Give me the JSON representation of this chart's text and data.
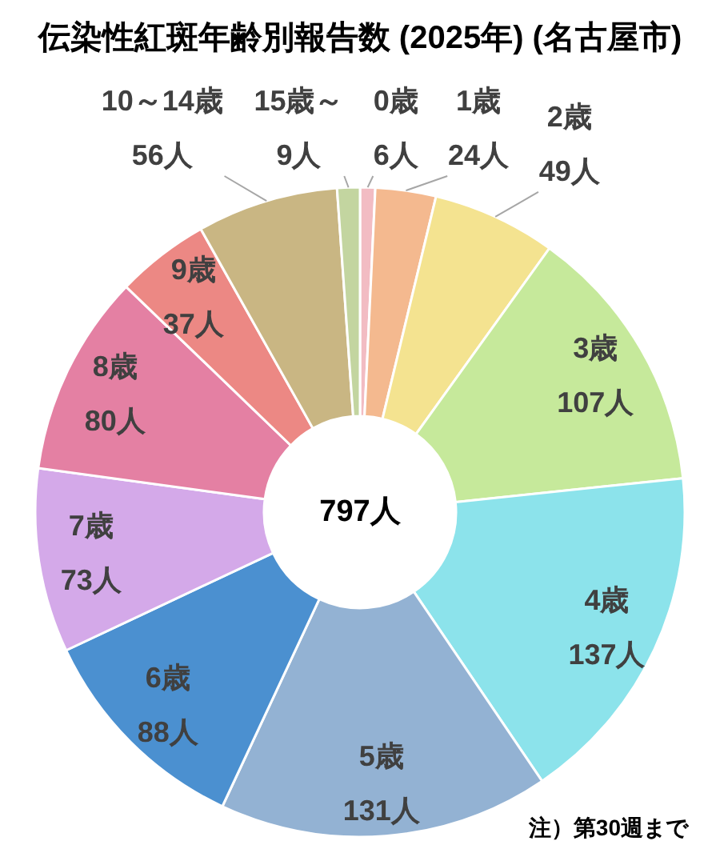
{
  "chart_data": {
    "type": "donut",
    "title": "伝染性紅斑年齢別報告数 (2025年) (名古屋市)",
    "categories": [
      "0歳",
      "1歳",
      "2歳",
      "3歳",
      "4歳",
      "5歳",
      "6歳",
      "7歳",
      "8歳",
      "9歳",
      "10～14歳",
      "15歳～"
    ],
    "values": [
      6,
      24,
      49,
      107,
      137,
      131,
      88,
      73,
      80,
      37,
      56,
      9
    ],
    "colors": [
      "#f2bcc3",
      "#f4b98f",
      "#f4e390",
      "#c6e99b",
      "#8ce3eb",
      "#93b2d3",
      "#4b90d0",
      "#d4a9e9",
      "#e480a3",
      "#ec8884",
      "#c9b683",
      "#c3d5a0"
    ],
    "value_labels": [
      "6人",
      "24人",
      "49人",
      "107人",
      "137人",
      "131人",
      "88人",
      "73人",
      "80人",
      "37人",
      "56人",
      "9人"
    ],
    "annotations": [
      "797人",
      "注）第30週まで"
    ]
  }
}
